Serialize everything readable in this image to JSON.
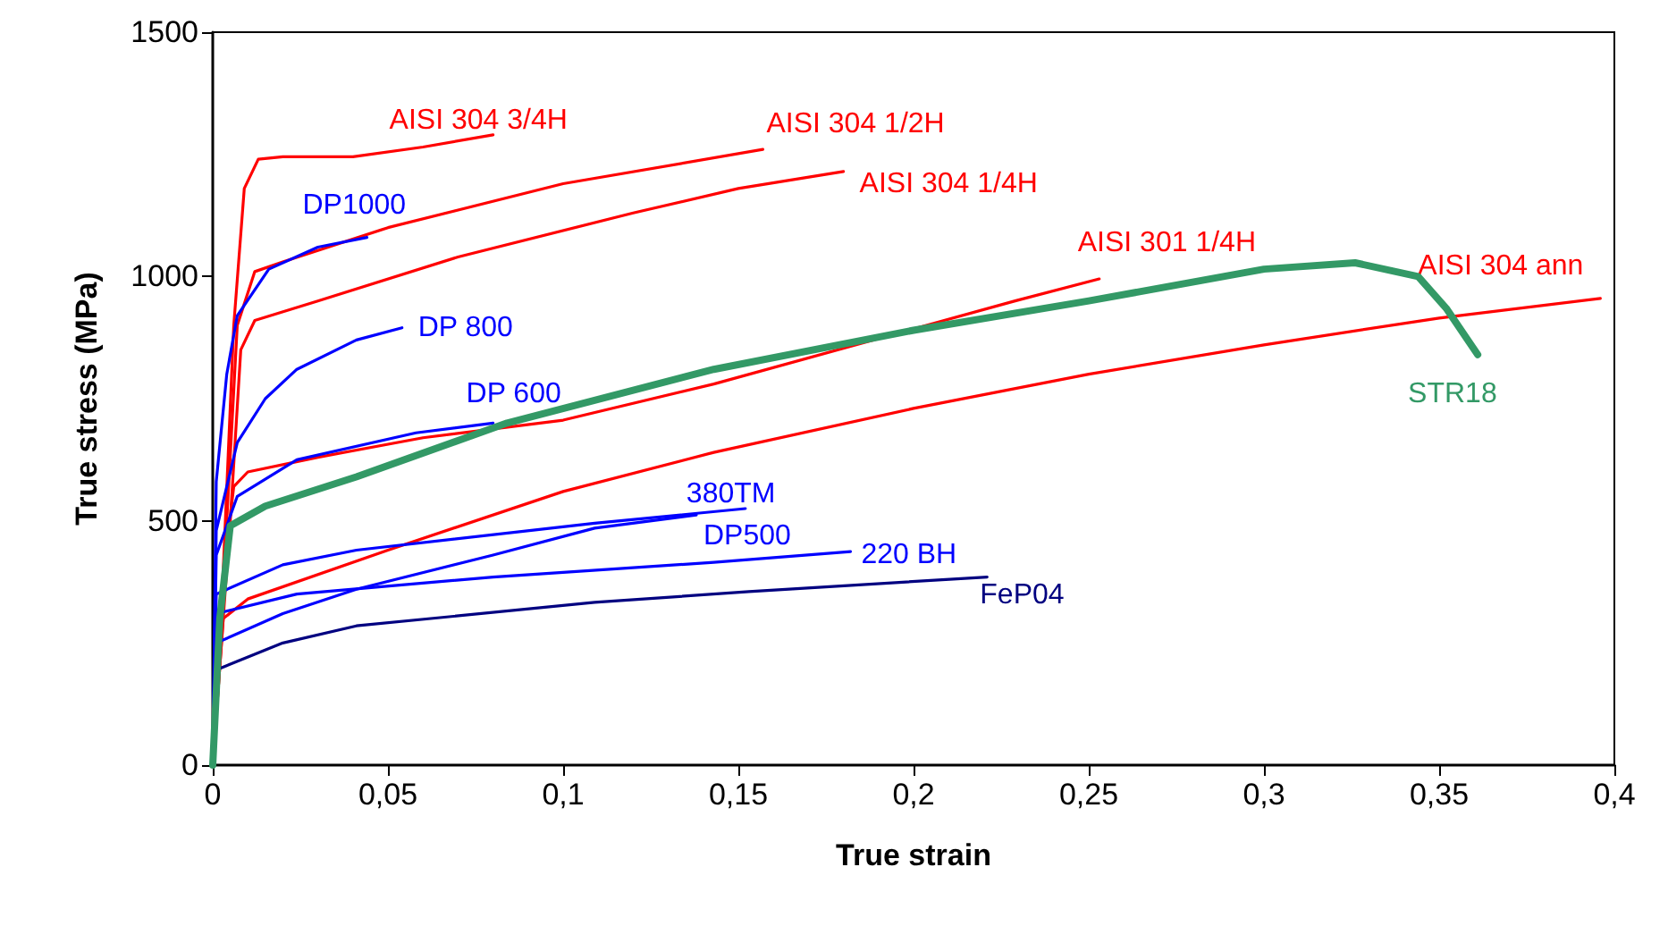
{
  "chart_data": {
    "type": "line",
    "xlabel": "True strain",
    "ylabel": "True stress (MPa)",
    "xlim": [
      0,
      0.4
    ],
    "ylim": [
      0,
      1500
    ],
    "xticks": [
      0,
      {
        "value": 0.05,
        "label": "0,05"
      },
      {
        "value": 0.1,
        "label": "0,1"
      },
      {
        "value": 0.15,
        "label": "0,15"
      },
      {
        "value": 0.2,
        "label": "0,2"
      },
      {
        "value": 0.25,
        "label": "0,25"
      },
      {
        "value": 0.3,
        "label": "0,3"
      },
      {
        "value": 0.35,
        "label": "0,35"
      },
      {
        "value": 0.4,
        "label": "0,4"
      }
    ],
    "yticks": [
      0,
      500,
      1000,
      1500
    ],
    "grid": false,
    "legend": false,
    "marker": "none",
    "line_style": "solid",
    "series": [
      {
        "name": "AISI 304 3/4H",
        "color": "#ff0000",
        "x": [
          0,
          0.003,
          0.006,
          0.009,
          0.013,
          0.02,
          0.04,
          0.06,
          0.08
        ],
        "values": [
          0,
          400,
          900,
          1180,
          1240,
          1245,
          1245,
          1265,
          1290
        ]
      },
      {
        "name": "AISI 304 1/2H",
        "color": "#ff0000",
        "x": [
          0,
          0.004,
          0.007,
          0.012,
          0.02,
          0.05,
          0.1,
          0.157
        ],
        "values": [
          0,
          500,
          900,
          1010,
          1030,
          1100,
          1190,
          1260
        ]
      },
      {
        "name": "AISI 304 1/4H",
        "color": "#ff0000",
        "x": [
          0,
          0.005,
          0.008,
          0.012,
          0.03,
          0.07,
          0.12,
          0.15,
          0.18
        ],
        "values": [
          0,
          500,
          850,
          910,
          950,
          1040,
          1130,
          1180,
          1215
        ]
      },
      {
        "name": "AISI 301 1/4H",
        "color": "#ff0000",
        "x": [
          0,
          0.004,
          0.006,
          0.01,
          0.03,
          0.06,
          0.1,
          0.143,
          0.229,
          0.253
        ],
        "values": [
          0,
          450,
          570,
          600,
          630,
          670,
          706,
          780,
          950,
          995
        ]
      },
      {
        "name": "AISI 304 ann",
        "color": "#ff0000",
        "x": [
          0,
          0.003,
          0.01,
          0.05,
          0.1,
          0.143,
          0.2,
          0.25,
          0.3,
          0.35,
          0.396
        ],
        "values": [
          0,
          300,
          340,
          440,
          560,
          640,
          730,
          800,
          860,
          915,
          955
        ]
      },
      {
        "name": "STR18",
        "color": "#339966",
        "x": [
          0,
          0.002,
          0.005,
          0.015,
          0.041,
          0.084,
          0.143,
          0.2,
          0.25,
          0.3,
          0.326,
          0.344,
          0.352,
          0.361
        ],
        "values": [
          0,
          300,
          490,
          530,
          590,
          700,
          810,
          890,
          950,
          1015,
          1028,
          1000,
          935,
          840
        ]
      },
      {
        "name": "DP1000",
        "color": "#0000ff",
        "x": [
          0,
          0.001,
          0.004,
          0.007,
          0.016,
          0.03,
          0.044
        ],
        "values": [
          0,
          580,
          800,
          920,
          1015,
          1060,
          1080
        ]
      },
      {
        "name": "DP 800",
        "color": "#0000ff",
        "x": [
          0,
          0.001,
          0.007,
          0.015,
          0.024,
          0.041,
          0.054
        ],
        "values": [
          0,
          480,
          660,
          750,
          810,
          870,
          895
        ]
      },
      {
        "name": "DP 600",
        "color": "#0000ff",
        "x": [
          0,
          0.001,
          0.007,
          0.024,
          0.058,
          0.08
        ],
        "values": [
          0,
          430,
          550,
          625,
          680,
          700
        ]
      },
      {
        "name": "380TM",
        "color": "#0000ff",
        "x": [
          0,
          0.001,
          0.02,
          0.041,
          0.109,
          0.152
        ],
        "values": [
          0,
          350,
          410,
          440,
          495,
          525
        ]
      },
      {
        "name": "DP500",
        "color": "#0000ff",
        "x": [
          0,
          0.001,
          0.02,
          0.041,
          0.08,
          0.109,
          0.138
        ],
        "values": [
          0,
          250,
          310,
          360,
          430,
          485,
          512
        ]
      },
      {
        "name": "220 BH",
        "color": "#0000ff",
        "x": [
          0,
          0.001,
          0.024,
          0.08,
          0.143,
          0.182
        ],
        "values": [
          0,
          310,
          350,
          385,
          415,
          437
        ]
      },
      {
        "name": "FeP04",
        "color": "#000080",
        "x": [
          0,
          0.001,
          0.02,
          0.041,
          0.109,
          0.153,
          0.221
        ],
        "values": [
          0,
          195,
          250,
          285,
          333,
          355,
          385
        ]
      }
    ]
  }
}
